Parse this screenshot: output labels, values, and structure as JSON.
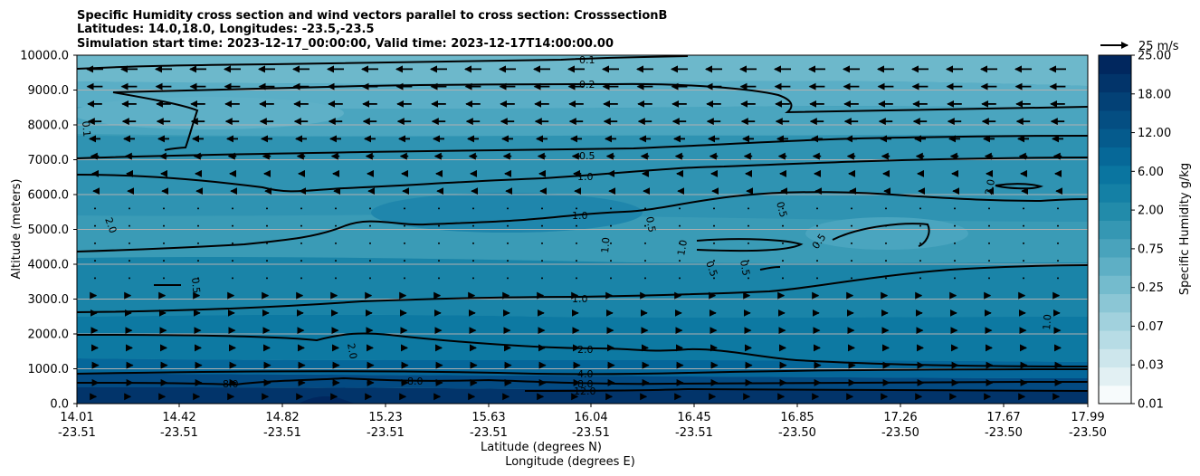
{
  "chart_data": {
    "type": "contour",
    "title_lines": [
      "Specific Humidity cross section and wind vectors parallel to cross section: CrosssectionB",
      "Latitudes: 14.0,18.0, Longitudes: -23.5,-23.5",
      "Simulation start time: 2023-12-17_00:00:00, Valid time: 2023-12-17T14:00:00.00"
    ],
    "ylabel": "Altitude (meters)",
    "xlabel_lines": [
      "Latitude (degrees N)",
      "Longitude (degrees E)"
    ],
    "ylim": [
      0,
      10000
    ],
    "y_ticks": [
      "0.0",
      "1000.0",
      "2000.0",
      "3000.0",
      "4000.0",
      "5000.0",
      "6000.0",
      "7000.0",
      "8000.0",
      "9000.0",
      "10000.0"
    ],
    "x_ticks": [
      {
        "lat": "14.01",
        "lon": "-23.51"
      },
      {
        "lat": "14.42",
        "lon": "-23.51"
      },
      {
        "lat": "14.82",
        "lon": "-23.51"
      },
      {
        "lat": "15.23",
        "lon": "-23.51"
      },
      {
        "lat": "15.63",
        "lon": "-23.51"
      },
      {
        "lat": "16.04",
        "lon": "-23.51"
      },
      {
        "lat": "16.45",
        "lon": "-23.51"
      },
      {
        "lat": "16.85",
        "lon": "-23.50"
      },
      {
        "lat": "17.26",
        "lon": "-23.50"
      },
      {
        "lat": "17.67",
        "lon": "-23.50"
      },
      {
        "lat": "17.99",
        "lon": "-23.50"
      }
    ],
    "colorbar": {
      "label": "Specific Humidity g/kg",
      "levels": [
        0.01,
        0.02,
        0.03,
        0.05,
        0.07,
        0.1,
        0.25,
        0.5,
        0.75,
        1.0,
        2.0,
        4.0,
        6.0,
        8.0,
        12.0,
        15.0,
        18.0,
        20.0,
        25.0
      ],
      "tick_labels": [
        "0.01",
        "0.03",
        "0.07",
        "0.25",
        "0.75",
        "2.00",
        "6.00",
        "12.00",
        "18.00",
        "25.00"
      ],
      "colors": [
        "#f7fbfc",
        "#e2f0f3",
        "#cde6ec",
        "#b7dce5",
        "#a1d1dd",
        "#8bc6d5",
        "#74bbcd",
        "#5eafc5",
        "#49a3bc",
        "#3597b3",
        "#228baa",
        "#1480a5",
        "#0a75a0",
        "#066898",
        "#055b8d",
        "#044e82",
        "#034176",
        "#02346a",
        "#01275e"
      ]
    },
    "wind_legend": {
      "speed": 25,
      "label": "25 m/s"
    },
    "contour_levels": [
      0.1,
      0.2,
      0.5,
      1.0,
      2.0,
      4.0,
      8.0,
      12.0
    ],
    "contour_labels": [
      "0.1",
      "0.2",
      "0.5",
      "1.0",
      "1.0",
      "1.0",
      "2.0",
      "4.0",
      "8.0",
      "12.0",
      "8.0",
      "8.0",
      "2.0",
      "2.0",
      "0.5",
      "0.5",
      "0.5",
      "0.5",
      "0.5",
      "0.5",
      "1.0",
      "1.0",
      "1.0",
      "0.1",
      "2.0"
    ],
    "wind_profile": [
      {
        "alt": 9600,
        "u": -15
      },
      {
        "alt": 9100,
        "u": -14
      },
      {
        "alt": 8600,
        "u": -13
      },
      {
        "alt": 8100,
        "u": -12
      },
      {
        "alt": 7600,
        "u": -10
      },
      {
        "alt": 7100,
        "u": -7
      },
      {
        "alt": 6600,
        "u": -5
      },
      {
        "alt": 6100,
        "u": -3
      },
      {
        "alt": 5600,
        "u": -1
      },
      {
        "alt": 5100,
        "u": 0
      },
      {
        "alt": 4600,
        "u": 0
      },
      {
        "alt": 4100,
        "u": 0
      },
      {
        "alt": 3600,
        "u": 1
      },
      {
        "alt": 3100,
        "u": 2
      },
      {
        "alt": 2600,
        "u": 3
      },
      {
        "alt": 2100,
        "u": 4
      },
      {
        "alt": 1600,
        "u": 5
      },
      {
        "alt": 1100,
        "u": 6
      },
      {
        "alt": 600,
        "u": 6
      },
      {
        "alt": 200,
        "u": 2
      }
    ]
  }
}
